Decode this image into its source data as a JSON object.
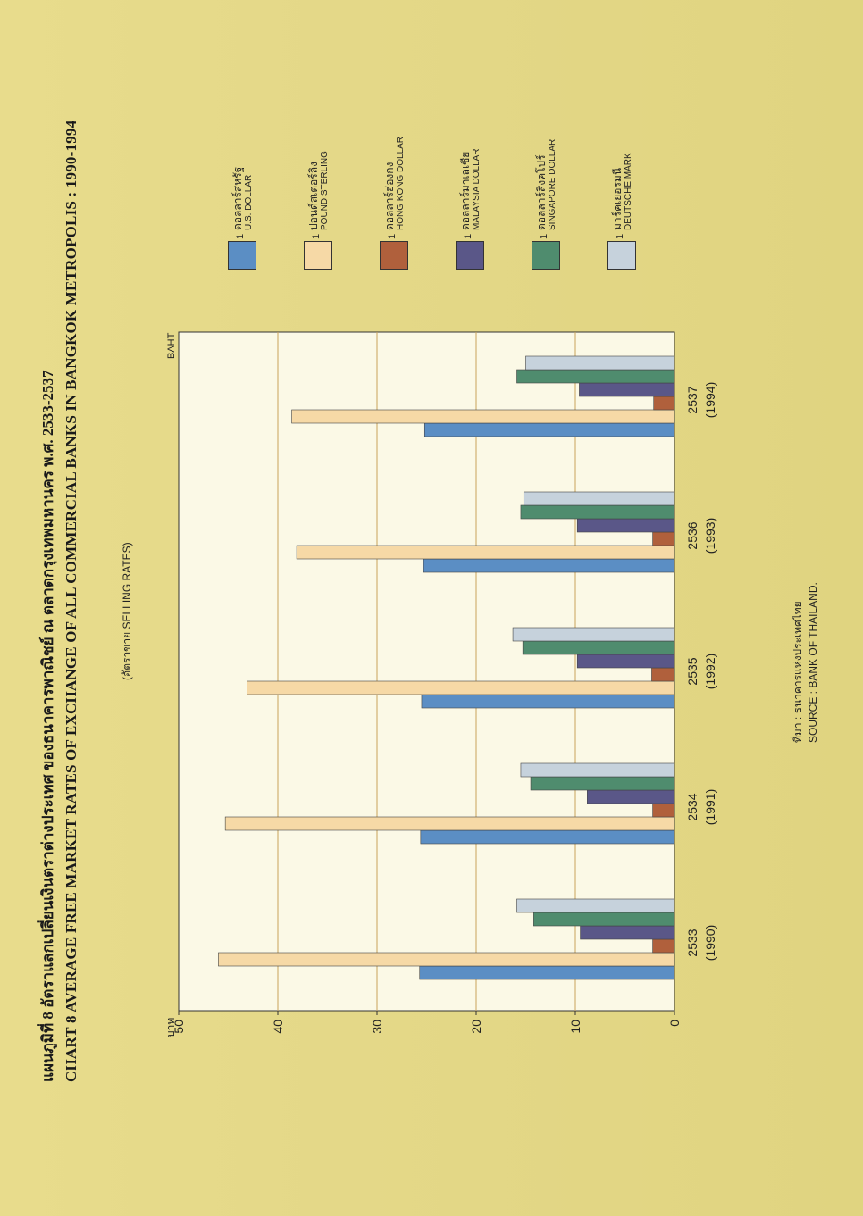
{
  "title_thai": "แผนภูมิที่ 8 อัตราแลกเปลี่ยนเงินตราต่างประเทศ ของธนาคารพาณิชย์ ณ ตลาดกรุงเทพมหานคร พ.ศ. 2533-2537",
  "title_eng": "CHART 8 AVERAGE FREE MARKET RATES OF EXCHANGE OF ALL COMMERCIAL BANKS IN BANGKOK METROPOLIS : 1990-1994",
  "subtitle": "(อัตราขาย SELLING RATES)",
  "source_thai_label": "ที่มา :",
  "source_thai": "ธนาคารแห่งประเทศไทย",
  "source_eng_label": "SOURCE :",
  "source_eng": "BANK OF THAILAND.",
  "legend": [
    {
      "num": "1",
      "thai": "ดอลลาร์สหรัฐ",
      "eng": "U.S. DOLLAR",
      "color": "#5b8ec4"
    },
    {
      "num": "1",
      "thai": "ปอนด์สเตอร์ลิง",
      "eng": "POUND STERLING",
      "color": "#f6d9a6"
    },
    {
      "num": "1",
      "thai": "ดอลลาร์ฮ่องกง",
      "eng": "HONG KONG DOLLAR",
      "color": "#b0603c"
    },
    {
      "num": "1",
      "thai": "ดอลลาร์มาเลเซีย",
      "eng": "MALAYSIA DOLLAR",
      "color": "#5a5788"
    },
    {
      "num": "1",
      "thai": "ดอลลาร์สิงคโปร์",
      "eng": "SINGAPORE DOLLAR",
      "color": "#4f8c6e"
    },
    {
      "num": "1",
      "thai": "มาร์คเยอรมนี",
      "eng": "DEUTSCHE MARK",
      "color": "#c6d2dc"
    }
  ],
  "chart_data": {
    "type": "bar",
    "categories": [
      "2533",
      "2534",
      "2535",
      "2536",
      "2537"
    ],
    "categories_sub": [
      "(1990)",
      "(1991)",
      "(1992)",
      "(1993)",
      "(1994)"
    ],
    "ylabel_thai": "บาท",
    "ylabel_eng": "BAHT",
    "ylim": [
      0,
      50
    ],
    "yticks": [
      "0",
      "10",
      "20",
      "30",
      "40",
      "50"
    ],
    "grid": true,
    "legend_position": "right",
    "series": [
      {
        "name": "U.S. DOLLAR",
        "values": [
          25.7,
          25.6,
          25.5,
          25.3,
          25.2
        ]
      },
      {
        "name": "POUND STERLING",
        "values": [
          46.0,
          45.3,
          43.1,
          38.1,
          38.6
        ]
      },
      {
        "name": "HONG KONG DOLLAR",
        "values": [
          2.2,
          2.2,
          2.3,
          2.2,
          2.1
        ]
      },
      {
        "name": "MALAYSIA DOLLAR",
        "values": [
          9.5,
          8.8,
          9.8,
          9.8,
          9.6
        ]
      },
      {
        "name": "SINGAPORE DOLLAR",
        "values": [
          14.2,
          14.5,
          15.3,
          15.5,
          15.9
        ]
      },
      {
        "name": "DEUTSCHE MARK",
        "values": [
          15.9,
          15.5,
          16.3,
          15.2,
          15.0
        ]
      }
    ]
  }
}
